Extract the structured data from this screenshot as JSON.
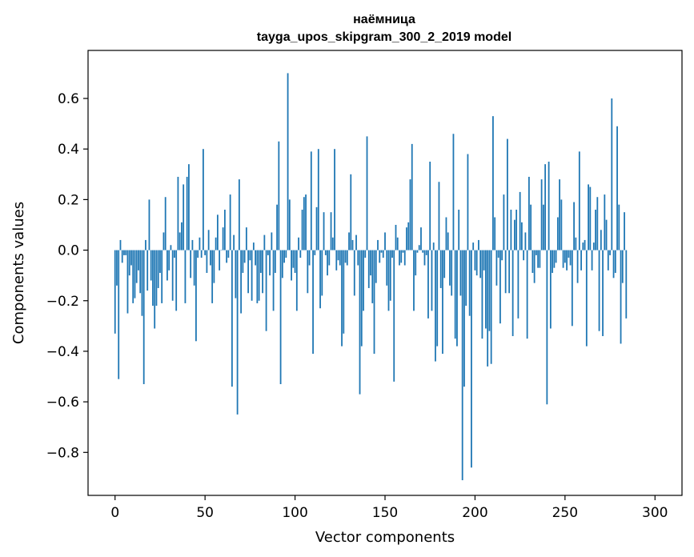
{
  "chart_data": {
    "type": "bar",
    "title": "наёмница",
    "subtitle": "tayga_upos_skipgram_300_2_2019 model",
    "xlabel": "Vector components",
    "ylabel": "Components values",
    "xlim": [
      -15,
      315
    ],
    "ylim": [
      -0.97,
      0.79
    ],
    "xticks": [
      0,
      50,
      100,
      150,
      200,
      250,
      300
    ],
    "yticks": [
      -0.8,
      -0.6,
      -0.4,
      -0.2,
      0.0,
      0.2,
      0.4,
      0.6
    ],
    "ytick_labels": [
      "−0.8",
      "−0.6",
      "−0.4",
      "−0.2",
      "0.0",
      "0.2",
      "0.4",
      "0.6"
    ],
    "bar_color": "#1f77b4",
    "grid": false,
    "values": [
      -0.33,
      -0.14,
      -0.51,
      0.04,
      -0.05,
      -0.02,
      -0.02,
      -0.25,
      -0.1,
      -0.06,
      -0.21,
      -0.19,
      -0.13,
      -0.08,
      -0.17,
      -0.26,
      -0.53,
      0.04,
      -0.16,
      0.2,
      -0.12,
      -0.22,
      -0.31,
      -0.22,
      -0.15,
      -0.09,
      -0.21,
      0.07,
      0.21,
      -0.12,
      -0.08,
      0.02,
      -0.2,
      -0.03,
      -0.24,
      0.29,
      0.07,
      0.11,
      0.26,
      -0.21,
      0.29,
      0.34,
      -0.11,
      0.04,
      -0.14,
      -0.36,
      -0.03,
      0.05,
      -0.03,
      0.4,
      -0.02,
      -0.09,
      0.08,
      -0.06,
      -0.21,
      -0.13,
      0.05,
      0.14,
      -0.08,
      0.0,
      0.09,
      0.16,
      -0.05,
      -0.03,
      0.22,
      -0.54,
      0.06,
      -0.19,
      -0.65,
      0.28,
      -0.25,
      -0.09,
      -0.05,
      0.09,
      -0.17,
      -0.04,
      -0.2,
      0.03,
      -0.06,
      -0.21,
      -0.2,
      -0.09,
      -0.17,
      0.06,
      -0.32,
      -0.02,
      -0.1,
      0.07,
      -0.24,
      -0.09,
      0.18,
      0.43,
      -0.53,
      -0.11,
      -0.05,
      -0.03,
      0.7,
      0.2,
      -0.12,
      -0.07,
      -0.09,
      -0.24,
      0.05,
      -0.03,
      0.16,
      0.21,
      0.22,
      -0.17,
      -0.06,
      0.39,
      -0.41,
      -0.02,
      0.17,
      0.4,
      -0.23,
      -0.18,
      0.15,
      -0.02,
      -0.1,
      -0.06,
      0.15,
      0.05,
      0.4,
      -0.08,
      -0.04,
      -0.06,
      -0.38,
      -0.33,
      -0.05,
      -0.06,
      0.07,
      0.3,
      0.04,
      -0.18,
      0.06,
      -0.06,
      -0.57,
      -0.38,
      -0.24,
      -0.03,
      0.45,
      -0.15,
      -0.1,
      -0.21,
      -0.41,
      -0.13,
      0.04,
      -0.05,
      -0.01,
      -0.03,
      0.07,
      -0.14,
      -0.24,
      -0.2,
      -0.03,
      -0.52,
      0.1,
      0.05,
      -0.06,
      -0.05,
      -0.01,
      -0.06,
      0.09,
      0.11,
      0.28,
      0.42,
      -0.24,
      -0.1,
      -0.01,
      0.02,
      0.09,
      -0.01,
      -0.06,
      -0.02,
      -0.27,
      0.35,
      -0.24,
      0.03,
      -0.44,
      -0.38,
      0.27,
      -0.15,
      -0.41,
      -0.11,
      0.13,
      0.07,
      -0.14,
      -0.18,
      0.46,
      -0.35,
      -0.38,
      0.16,
      -0.18,
      -0.91,
      -0.54,
      -0.22,
      0.38,
      -0.26,
      -0.86,
      0.03,
      -0.08,
      -0.1,
      0.04,
      -0.11,
      -0.35,
      -0.08,
      -0.31,
      -0.46,
      -0.32,
      -0.45,
      0.53,
      0.13,
      -0.14,
      -0.03,
      -0.29,
      -0.04,
      0.22,
      -0.17,
      0.44,
      -0.17,
      0.16,
      -0.34,
      0.12,
      0.16,
      -0.27,
      0.23,
      0.11,
      -0.04,
      0.07,
      -0.35,
      0.29,
      0.18,
      -0.09,
      -0.13,
      -0.02,
      -0.07,
      -0.07,
      0.28,
      0.18,
      0.34,
      -0.61,
      0.35,
      -0.31,
      -0.09,
      -0.07,
      -0.05,
      0.13,
      0.28,
      0.2,
      -0.07,
      -0.05,
      -0.08,
      -0.03,
      -0.06,
      -0.3,
      0.19,
      0.05,
      -0.13,
      0.39,
      -0.08,
      0.03,
      0.04,
      -0.38,
      0.26,
      0.25,
      -0.08,
      0.03,
      0.16,
      0.21,
      -0.32,
      0.08,
      -0.34,
      0.22,
      0.12,
      -0.08,
      -0.02,
      0.6,
      -0.11,
      -0.09,
      0.49,
      0.18,
      -0.37,
      -0.13,
      0.15,
      -0.27
    ]
  }
}
